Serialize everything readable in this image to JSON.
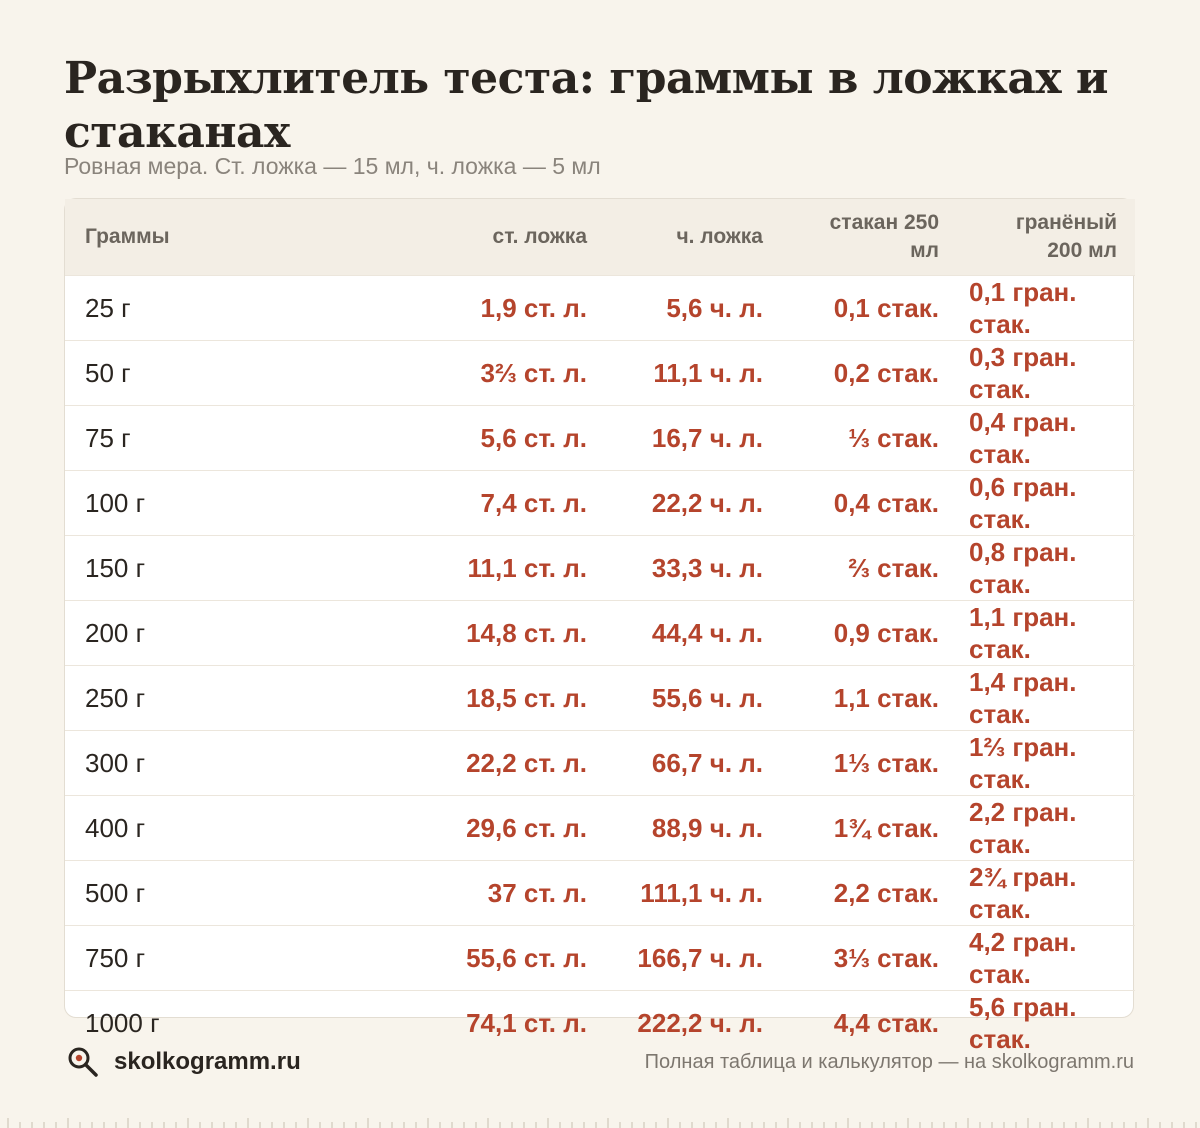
{
  "title": "Разрыхлитель теста: граммы в ложках и стаканах",
  "subtitle": "Ровная мера. Ст. ложка — 15 мл, ч. ложка — 5 мл",
  "table": {
    "headers": [
      "Граммы",
      "ст. ложка",
      "ч. ложка",
      "стакан 250 мл",
      "гранёный 200 мл"
    ],
    "rows": [
      [
        "25 г",
        "1,9 ст. л.",
        "5,6 ч. л.",
        "0,1 стак.",
        "0,1 гран. стак."
      ],
      [
        "50 г",
        "3⅔ ст. л.",
        "11,1 ч. л.",
        "0,2 стак.",
        "0,3 гран. стак."
      ],
      [
        "75 г",
        "5,6 ст. л.",
        "16,7 ч. л.",
        "⅓ стак.",
        "0,4 гран. стак."
      ],
      [
        "100 г",
        "7,4 ст. л.",
        "22,2 ч. л.",
        "0,4 стак.",
        "0,6 гран. стак."
      ],
      [
        "150 г",
        "11,1 ст. л.",
        "33,3 ч. л.",
        "⅔ стак.",
        "0,8 гран. стак."
      ],
      [
        "200 г",
        "14,8 ст. л.",
        "44,4 ч. л.",
        "0,9 стак.",
        "1,1 гран. стак."
      ],
      [
        "250 г",
        "18,5 ст. л.",
        "55,6 ч. л.",
        "1,1 стак.",
        "1,4 гран. стак."
      ],
      [
        "300 г",
        "22,2 ст. л.",
        "66,7 ч. л.",
        "1⅓ стак.",
        "1⅔ гран. стак."
      ],
      [
        "400 г",
        "29,6 ст. л.",
        "88,9 ч. л.",
        "1¾ стак.",
        "2,2 гран. стак."
      ],
      [
        "500 г",
        "37 ст. л.",
        "111,1 ч. л.",
        "2,2 стак.",
        "2¾ гран. стак."
      ],
      [
        "750 г",
        "55,6 ст. л.",
        "166,7 ч. л.",
        "3⅓ стак.",
        "4,2 гран. стак."
      ],
      [
        "1000 г",
        "74,1 ст. л.",
        "222,2 ч. л.",
        "4,4 стак.",
        "5,6 гран. стак."
      ]
    ]
  },
  "footer": {
    "brand": "skolkogramm.ru",
    "brand_icon": "magnifier-icon",
    "note": "Полная таблица и калькулятор — на skolkogramm.ru"
  },
  "colors": {
    "background": "#f8f4ec",
    "accent": "#b5442c",
    "text": "#2a2520",
    "muted": "#8a847c"
  }
}
